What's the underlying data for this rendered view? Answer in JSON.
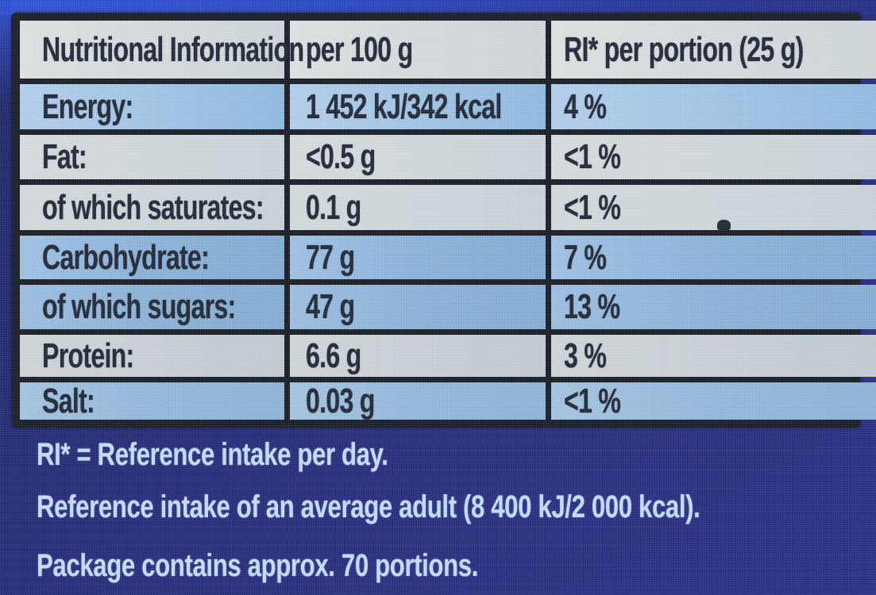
{
  "table": {
    "headers": [
      "Nutritional Information",
      "per 100 g",
      "RI* per portion (25 g)"
    ],
    "rows": [
      {
        "label": "Energy:",
        "per100": "1 452 kJ/342 kcal",
        "ri": "4 %"
      },
      {
        "label": "Fat:",
        "per100": "<0.5 g",
        "ri": "<1 %"
      },
      {
        "label": "of which saturates:",
        "per100": "0.1 g",
        "ri": "<1 %"
      },
      {
        "label": "Carbohydrate:",
        "per100": "77 g",
        "ri": "7 %"
      },
      {
        "label": "of which sugars:",
        "per100": "47 g",
        "ri": "13 %"
      },
      {
        "label": "Protein:",
        "per100": "6.6 g",
        "ri": "3 %"
      },
      {
        "label": "Salt:",
        "per100": "0.03 g",
        "ri": "<1 %"
      }
    ]
  },
  "footnotes": {
    "reference_intake_definition": "RI* = Reference intake per day.",
    "reference_intake_adult": "Reference intake of an average adult (8 400 kJ/2 000 kcal).",
    "package_portions": "Package contains approx. 70 portions."
  },
  "colors": {
    "background_navy": "#282d78",
    "top_band_blue": "#2e4fc8",
    "table_border": "#1b2029",
    "header_row": "#d4dadb",
    "row_light": "#ccd4d8",
    "row_blue": "#93b7da",
    "table_text": "#232a39",
    "footnote_text": "#c2daf4"
  }
}
